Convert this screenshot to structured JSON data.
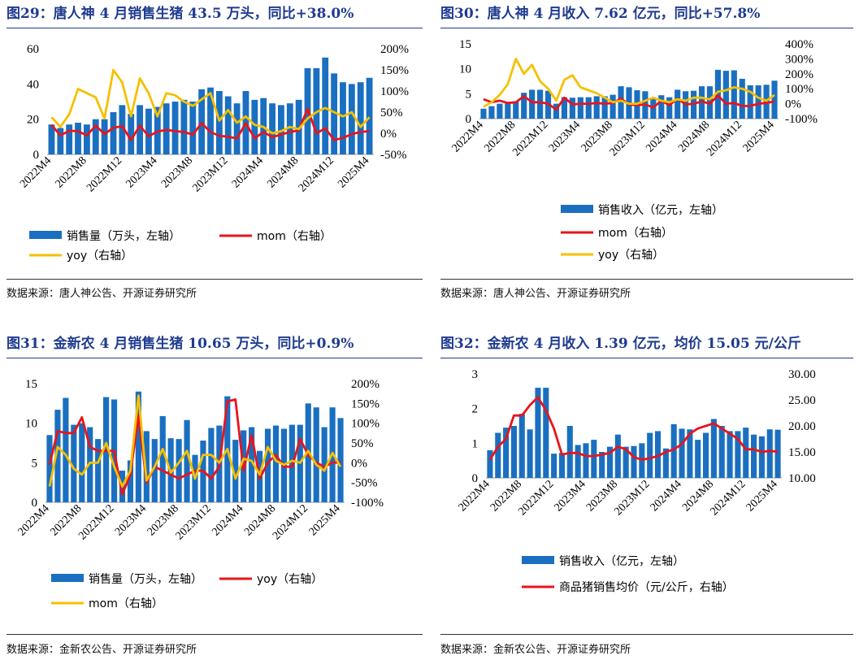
{
  "colors": {
    "bar": "#1a6fc0",
    "red": "#e8141b",
    "yellow": "#f5c000",
    "title": "#1f3b8f"
  },
  "charts": [
    {
      "title": "图29：唐人神 4 月销售生猪 43.5 万头，同比+38.0%",
      "source": "数据来源：唐人神公告、开源证券研究所",
      "chart_data": {
        "type": "bar+line",
        "x": [
          "2022M4",
          "2022M5",
          "2022M6",
          "2022M7",
          "2022M8",
          "2022M9",
          "2022M10",
          "2022M11",
          "2022M12",
          "2023M1",
          "2023M2",
          "2023M3",
          "2023M4",
          "2023M5",
          "2023M6",
          "2023M7",
          "2023M8",
          "2023M9",
          "2023M10",
          "2023M11",
          "2023M12",
          "2024M1",
          "2024M2",
          "2024M3",
          "2024M4",
          "2024M5",
          "2024M6",
          "2024M7",
          "2024M8",
          "2024M9",
          "2024M10",
          "2024M11",
          "2024M12",
          "2025M1",
          "2025M2",
          "2025M3",
          "2025M4"
        ],
        "x_tick_labels": [
          "2022M4",
          "2022M8",
          "2022M12",
          "2023M4",
          "2023M8",
          "2023M12",
          "2024M4",
          "2024M8",
          "2024M12",
          "2025M4"
        ],
        "y_left": {
          "min": 0,
          "max": 60,
          "ticks": [
            0,
            20,
            40,
            60
          ]
        },
        "y_right": {
          "min": -50,
          "max": 200,
          "ticks": [
            -50,
            0,
            50,
            100,
            150,
            200
          ],
          "suffix": "%"
        },
        "series": [
          {
            "name": "销售量（万头，左轴）",
            "type": "bar",
            "axis": "left",
            "values": [
              17,
              15,
              17,
              18,
              17,
              20,
              20,
              24,
              28,
              23,
              28,
              26,
              27,
              29,
              30,
              31,
              30,
              37,
              38,
              36,
              33,
              29,
              36,
              31,
              32,
              29,
              28,
              29,
              31,
              49,
              49,
              55,
              46,
              41,
              40,
              41,
              43.5
            ]
          },
          {
            "name": "mom（右轴）",
            "type": "line",
            "color": "red",
            "axis": "right",
            "values": [
              20,
              -5,
              6,
              5,
              -5,
              18,
              -2,
              13,
              17,
              -16,
              18,
              -7,
              4,
              8,
              5,
              3,
              -3,
              24,
              3,
              -6,
              -8,
              -12,
              24,
              -12,
              3,
              -9,
              -3,
              3,
              7,
              58,
              0,
              12,
              -16,
              -11,
              -2,
              3,
              5
            ]
          },
          {
            "name": "yoy（右轴）",
            "type": "line",
            "color": "yellow",
            "axis": "right",
            "values": [
              38,
              15,
              45,
              105,
              95,
              85,
              35,
              150,
              120,
              40,
              130,
              95,
              40,
              95,
              90,
              75,
              65,
              80,
              95,
              30,
              55,
              25,
              40,
              20,
              15,
              0,
              5,
              15,
              10,
              35,
              50,
              60,
              50,
              40,
              50,
              15,
              38
            ]
          }
        ],
        "legend": [
          {
            "label": "销售量（万头，左轴）",
            "kind": "bar",
            "color": "bar"
          },
          {
            "label": "mom（右轴）",
            "kind": "line",
            "color": "red"
          },
          {
            "label": "yoy（右轴）",
            "kind": "line",
            "color": "yellow"
          }
        ]
      }
    },
    {
      "title": "图30：唐人神 4 月收入 7.62 亿元，同比+57.8%",
      "source": "数据来源：唐人神公告、开源证券研究所",
      "chart_data": {
        "type": "bar+line",
        "x": [
          "2022M4",
          "2022M5",
          "2022M6",
          "2022M7",
          "2022M8",
          "2022M9",
          "2022M10",
          "2022M11",
          "2022M12",
          "2023M1",
          "2023M2",
          "2023M3",
          "2023M4",
          "2023M5",
          "2023M6",
          "2023M7",
          "2023M8",
          "2023M9",
          "2023M10",
          "2023M11",
          "2023M12",
          "2024M1",
          "2024M2",
          "2024M3",
          "2024M4",
          "2024M5",
          "2024M6",
          "2024M7",
          "2024M8",
          "2024M9",
          "2024M10",
          "2024M11",
          "2024M12",
          "2025M1",
          "2025M2",
          "2025M3",
          "2025M4"
        ],
        "x_tick_labels": [
          "2022M4",
          "2022M8",
          "2022M12",
          "2023M4",
          "2023M8",
          "2023M12",
          "2024M4",
          "2024M8",
          "2024M12",
          "2025M4"
        ],
        "y_left": {
          "min": 0,
          "max": 15,
          "ticks": [
            0,
            5,
            10,
            15
          ]
        },
        "y_right": {
          "min": -100,
          "max": 400,
          "ticks": [
            -100,
            0,
            100,
            200,
            300,
            400
          ],
          "suffix": "%"
        },
        "series": [
          {
            "name": "销售收入（亿元，左轴）",
            "type": "bar",
            "axis": "left",
            "values": [
              2,
              2.5,
              3,
              3.2,
              3.5,
              5.2,
              5.8,
              5.8,
              5.6,
              3,
              4.3,
              4.2,
              4.3,
              4.3,
              4.5,
              4.5,
              4.8,
              6.5,
              6.3,
              5.7,
              5.5,
              4,
              4.7,
              4.3,
              5.8,
              5.5,
              5.6,
              6.5,
              6.5,
              9.8,
              9.6,
              9.7,
              8,
              6.7,
              6.7,
              6.8,
              7.62
            ]
          },
          {
            "name": "mom（右轴）",
            "type": "line",
            "color": "red",
            "axis": "right",
            "values": [
              30,
              10,
              20,
              5,
              10,
              50,
              10,
              10,
              0,
              -40,
              40,
              -5,
              0,
              0,
              5,
              0,
              5,
              35,
              -5,
              -10,
              -5,
              -25,
              20,
              -10,
              35,
              -5,
              0,
              15,
              0,
              55,
              0,
              5,
              -15,
              -15,
              0,
              5,
              15
            ]
          },
          {
            "name": "yoy（右轴）",
            "type": "line",
            "color": "yellow",
            "axis": "right",
            "values": [
              -20,
              10,
              60,
              130,
              300,
              200,
              260,
              150,
              100,
              20,
              160,
              190,
              110,
              90,
              70,
              40,
              10,
              20,
              0,
              0,
              20,
              40,
              20,
              10,
              30,
              20,
              40,
              40,
              30,
              80,
              90,
              110,
              100,
              80,
              40,
              20,
              58
            ]
          }
        ],
        "legend": [
          {
            "label": "销售收入（亿元，左轴）",
            "kind": "bar",
            "color": "bar"
          },
          {
            "label": "mom（右轴）",
            "kind": "line",
            "color": "red"
          },
          {
            "label": "yoy（右轴）",
            "kind": "line",
            "color": "yellow"
          }
        ]
      }
    },
    {
      "title": "图31：金新农 4 月销售生猪 10.65 万头，同比+0.9%",
      "source": "数据来源：金新农公告、开源证券研究所",
      "chart_data": {
        "type": "bar+line",
        "x": [
          "2022M4",
          "2022M5",
          "2022M6",
          "2022M7",
          "2022M8",
          "2022M9",
          "2022M10",
          "2022M11",
          "2022M12",
          "2023M1",
          "2023M2",
          "2023M3",
          "2023M4",
          "2023M5",
          "2023M6",
          "2023M7",
          "2023M8",
          "2023M9",
          "2023M10",
          "2023M11",
          "2023M12",
          "2024M1",
          "2024M2",
          "2024M3",
          "2024M4",
          "2024M5",
          "2024M6",
          "2024M7",
          "2024M8",
          "2024M9",
          "2024M10",
          "2024M11",
          "2024M12",
          "2025M1",
          "2025M2",
          "2025M3",
          "2025M4"
        ],
        "x_tick_labels": [
          "2022M4",
          "2022M8",
          "2022M12",
          "2023M4",
          "2023M8",
          "2023M12",
          "2024M4",
          "2024M8",
          "2024M12",
          "2025M4"
        ],
        "y_left": {
          "min": 0,
          "max": 15,
          "ticks": [
            0,
            5,
            10,
            15
          ]
        },
        "y_right": {
          "min": -100,
          "max": 200,
          "ticks": [
            -100,
            -50,
            0,
            50,
            100,
            150,
            200
          ],
          "suffix": "%"
        },
        "series": [
          {
            "name": "销售量（万头，左轴）",
            "type": "bar",
            "axis": "left",
            "values": [
              8.5,
              11.7,
              13.2,
              9.8,
              10,
              9.5,
              8,
              13.3,
              13,
              4,
              5.3,
              14,
              9,
              8,
              10.9,
              8.1,
              8,
              10.4,
              6,
              7.8,
              9.4,
              9.7,
              13.4,
              7.9,
              9.1,
              9.5,
              6.5,
              9.3,
              9.7,
              9.3,
              9.8,
              9.8,
              12.5,
              12,
              9.5,
              12,
              10.65
            ]
          },
          {
            "name": "yoy（右轴）",
            "type": "line",
            "color": "red",
            "axis": "right",
            "values": [
              -5,
              80,
              75,
              75,
              115,
              40,
              30,
              30,
              30,
              -80,
              -30,
              120,
              -50,
              -10,
              -20,
              -30,
              -40,
              -30,
              -20,
              -20,
              -40,
              -10,
              155,
              160,
              -20,
              70,
              -40,
              0,
              20,
              -10,
              -10,
              60,
              20,
              0,
              -10,
              0,
              1
            ]
          },
          {
            "name": "mom（右轴）",
            "type": "line",
            "color": "yellow",
            "axis": "right",
            "values": [
              -60,
              40,
              20,
              -15,
              -30,
              0,
              0,
              50,
              -10,
              -60,
              -20,
              170,
              -45,
              -10,
              35,
              -25,
              0,
              30,
              -40,
              20,
              20,
              0,
              35,
              -40,
              10,
              5,
              -30,
              40,
              5,
              -5,
              5,
              0,
              30,
              -5,
              -20,
              25,
              -10
            ]
          }
        ],
        "legend": [
          {
            "label": "销售量（万头，左轴）",
            "kind": "bar",
            "color": "bar"
          },
          {
            "label": "yoy（右轴）",
            "kind": "line",
            "color": "red"
          },
          {
            "label": "mom（右轴）",
            "kind": "line",
            "color": "yellow"
          }
        ]
      }
    },
    {
      "title": "图32：金新农 4 月收入 1.39 亿元，均价 15.05 元/公斤",
      "source": "数据来源：金新农公告、开源证券研究所",
      "chart_data": {
        "type": "bar+line",
        "x": [
          "2022M4",
          "2022M5",
          "2022M6",
          "2022M7",
          "2022M8",
          "2022M9",
          "2022M10",
          "2022M11",
          "2022M12",
          "2023M1",
          "2023M2",
          "2023M3",
          "2023M4",
          "2023M5",
          "2023M6",
          "2023M7",
          "2023M8",
          "2023M9",
          "2023M10",
          "2023M11",
          "2023M12",
          "2024M1",
          "2024M2",
          "2024M3",
          "2024M4",
          "2024M5",
          "2024M6",
          "2024M7",
          "2024M8",
          "2024M9",
          "2024M10",
          "2024M11",
          "2024M12",
          "2025M1",
          "2025M2",
          "2025M3",
          "2025M4"
        ],
        "x_tick_labels": [
          "2022M4",
          "2022M8",
          "2022M12",
          "2023M4",
          "2023M8",
          "2023M12",
          "2024M4",
          "2024M8",
          "2024M12",
          "2025M4"
        ],
        "y_left": {
          "min": 0,
          "max": 3,
          "ticks": [
            0,
            1,
            2,
            3
          ]
        },
        "y_right": {
          "min": 10,
          "max": 30,
          "ticks": [
            10,
            15,
            20,
            25,
            30
          ],
          "decimals": 2
        },
        "series": [
          {
            "name": "销售收入（亿元，左轴）",
            "type": "bar",
            "axis": "left",
            "values": [
              0.8,
              1.3,
              1.45,
              1.5,
              1.85,
              1.4,
              2.6,
              2.6,
              0.7,
              0.72,
              1.5,
              0.95,
              1,
              1.1,
              0.75,
              0.9,
              1.25,
              0.9,
              0.92,
              1,
              1.3,
              1.35,
              0.85,
              1.55,
              1.42,
              1.4,
              1.1,
              1.3,
              1.7,
              1.5,
              1.35,
              1.35,
              1.45,
              1.25,
              1.2,
              1.4,
              1.39
            ]
          },
          {
            "name": "商品猪销售均价（元/公斤，右轴）",
            "type": "line",
            "color": "red",
            "axis": "right",
            "values": [
              13.5,
              16,
              17.5,
              22,
              22,
              24,
              25.5,
              23,
              19.5,
              14.5,
              14.8,
              14.8,
              14.2,
              14.2,
              14.5,
              14.8,
              16,
              15.5,
              14,
              13.5,
              13.8,
              14.2,
              15,
              15.5,
              16.5,
              18.5,
              19.5,
              20,
              20.5,
              19.5,
              18.5,
              17.5,
              15.5,
              15.5,
              15,
              15.2,
              15.05
            ]
          }
        ],
        "legend": [
          {
            "label": "销售收入（亿元，左轴）",
            "kind": "bar",
            "color": "bar"
          },
          {
            "label": "商品猪销售均价（元/公斤，右轴）",
            "kind": "line",
            "color": "red"
          }
        ]
      }
    }
  ]
}
